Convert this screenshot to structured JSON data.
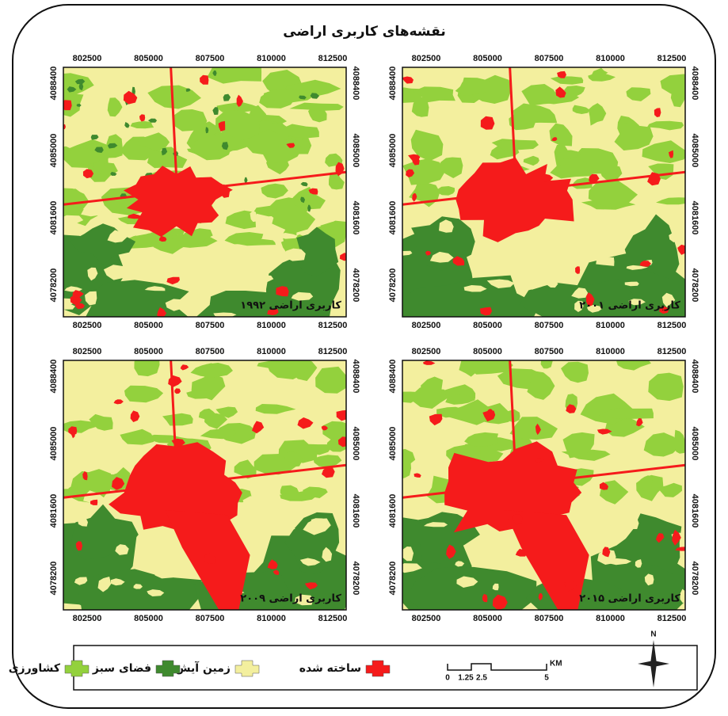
{
  "title": "نقشه‌های کاربری اراضی",
  "x_ticks": [
    802500,
    805000,
    807500,
    810000,
    812500
  ],
  "y_ticks": [
    4088400,
    4085000,
    4081600,
    4078200
  ],
  "panels": [
    {
      "label": "کاربری اراضی ۱۹۹۲"
    },
    {
      "label": "کاربری اراضی ۲۰۰۱"
    },
    {
      "label": "کاربری اراضی ۲۰۰۹"
    },
    {
      "label": "کاربری اراضی ۲۰۱۵"
    }
  ],
  "legend": [
    {
      "label": "ساخته شده",
      "color": "#f51b1b"
    },
    {
      "label": "زمین آیش",
      "color": "#f3ef9e"
    },
    {
      "label": "فضای سبز",
      "color": "#3f8a2e"
    },
    {
      "label": "کشاورزی",
      "color": "#93d13d"
    }
  ],
  "scale_bar": {
    "labels": [
      "0",
      "1.25",
      "2.5",
      "5"
    ],
    "unit": "KM"
  },
  "north": "N"
}
